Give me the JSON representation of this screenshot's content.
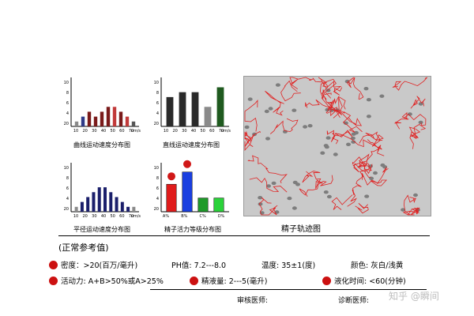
{
  "charts": [
    {
      "id": "linear",
      "caption": "曲线运动速度分布图",
      "yticks": [
        "10",
        "8",
        "6",
        "4",
        "20"
      ],
      "xticks": [
        "10",
        "20",
        "30",
        "40",
        "50",
        "60",
        "70"
      ],
      "unit": "um/s",
      "values": [
        1,
        2,
        3,
        2,
        3,
        4,
        4,
        3,
        2,
        1
      ],
      "colors": [
        "#8a8a8a",
        "#2f3a88",
        "#7a1a1a",
        "#7a1a1a",
        "#7a1a1a",
        "#7a1a1a",
        "#c23a3a",
        "#7a1a1a",
        "#c23a3a",
        "#555555"
      ]
    },
    {
      "id": "straight",
      "caption": "直线运动速度分布图",
      "yticks": [
        "10",
        "8",
        "6",
        "4",
        "20"
      ],
      "xticks": [
        "10",
        "20",
        "30",
        "40",
        "50",
        "60",
        "70"
      ],
      "unit": "um/s",
      "values": [
        6,
        7,
        7,
        4,
        8
      ],
      "colors": [
        "#2a2a2a",
        "#2a2a2a",
        "#2a2a2a",
        "#8a8a8a",
        "#1f5a1f"
      ]
    },
    {
      "id": "avgpath",
      "caption": "平径运动速度分布图",
      "yticks": [
        "10",
        "8",
        "6",
        "4",
        "20"
      ],
      "xticks": [
        "10",
        "20",
        "30",
        "40",
        "50",
        "60",
        "70"
      ],
      "unit": "um/s",
      "values": [
        1,
        2,
        3,
        4,
        5,
        5,
        4,
        3,
        2,
        1,
        1
      ],
      "colors": [
        "#8a8a8a",
        "#1b1f6b",
        "#1b1f6b",
        "#1b1f6b",
        "#1b1f6b",
        "#1b1f6b",
        "#1b1f6b",
        "#1b1f6b",
        "#1b1f6b",
        "#1b1f6b",
        "#8a8a8a"
      ]
    },
    {
      "id": "grade",
      "caption": "精子活力等级分布图",
      "yticks": [
        "10",
        "8",
        "6",
        "4",
        "20"
      ],
      "xticks": [
        "A%",
        "B%",
        "C%",
        "D%"
      ],
      "unit": "",
      "values": [
        18,
        26,
        9,
        9
      ],
      "colors": [
        "#e01b1b",
        "#1a3fe0",
        "#1f9a2a",
        "#2ad23a"
      ],
      "markers": [
        0,
        1
      ]
    }
  ],
  "track": {
    "title": "精子轨迹图",
    "line_color": "#e02020"
  },
  "reference": {
    "title": "(正常参考值)",
    "row1": [
      {
        "label": "密度：>20(百万/毫升)",
        "dot": true
      },
      {
        "label": "PH值: 7.2---8.0",
        "dot": false
      },
      {
        "label": "温度: 35±1(度)",
        "dot": false
      },
      {
        "label": "颜色: 灰白/浅黄",
        "dot": false
      }
    ],
    "row2": [
      {
        "label": "活动力: A+B>50%或A>25%",
        "dot": true
      },
      {
        "label": "精液量: 2---5(毫升)",
        "dot": true
      },
      {
        "label": "液化时间: <60(分钟)",
        "dot": true
      }
    ],
    "dot_color": "#cc1111"
  },
  "signatures": {
    "reviewer": "审核医师:",
    "diagnoser": "诊断医师:"
  },
  "watermark": "知乎 @瞬间"
}
